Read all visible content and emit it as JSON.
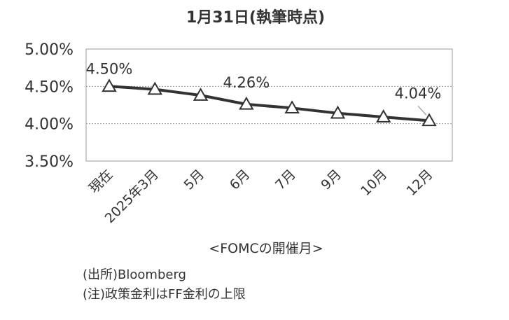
{
  "chart_data": {
    "type": "line",
    "title": "1月31日(執筆時点)",
    "xlabel": "<FOMCの開催月>",
    "ylabel": "",
    "categories": [
      "現在",
      "2025年3月",
      "5月",
      "6月",
      "7月",
      "9月",
      "10月",
      "12月"
    ],
    "series": [
      {
        "values": [
          4.5,
          4.46,
          4.38,
          4.26,
          4.21,
          4.14,
          4.09,
          4.04
        ]
      }
    ],
    "ylim": [
      3.5,
      5.0
    ],
    "yticks": [
      "3.50%",
      "4.00%",
      "4.50%",
      "5.00%"
    ],
    "ytick_values": [
      3.5,
      4.0,
      4.5,
      5.0
    ],
    "annotations": [
      {
        "index": 0,
        "text": "4.50%"
      },
      {
        "index": 3,
        "text": "4.26%"
      },
      {
        "index": 7,
        "text": "4.04%"
      }
    ],
    "grid": "horizontal dotted",
    "legend": "none",
    "colors": {
      "line": "#333333",
      "marker_fill": "#ffffff",
      "grid": "#999999",
      "frame": "#999999",
      "leader": "#aaaaaa"
    }
  },
  "notes": {
    "source": "(出所)Bloomberg",
    "caveat": "(注)政策金利はFF金利の上限"
  }
}
